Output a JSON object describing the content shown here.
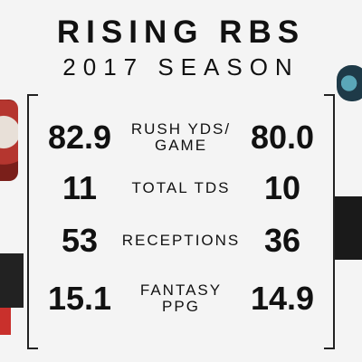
{
  "header": {
    "title": "RISING RBS",
    "subtitle": "2017 SEASON"
  },
  "stats": [
    {
      "left": "82.9",
      "label_line1": "RUSH YDS/",
      "label_line2": "GAME",
      "right": "80.0"
    },
    {
      "left": "11",
      "label_line1": "TOTAL TDS",
      "label_line2": "",
      "right": "10"
    },
    {
      "left": "53",
      "label_line1": "RECEPTIONS",
      "label_line2": "",
      "right": "36"
    },
    {
      "left": "15.1",
      "label_line1": "FANTASY",
      "label_line2": "PPG",
      "right": "14.9"
    }
  ],
  "colors": {
    "background": "#f4f4f4",
    "text": "#111111",
    "accent_red": "#c9302c"
  }
}
